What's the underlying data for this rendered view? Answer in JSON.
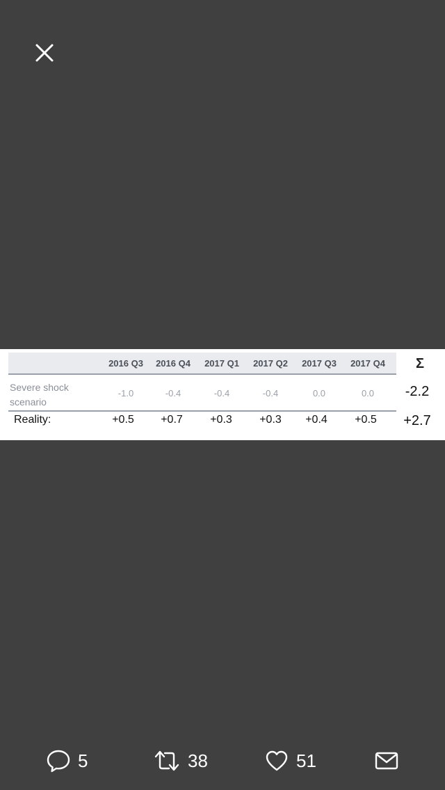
{
  "viewer": {
    "close_icon": "close-icon"
  },
  "table": {
    "columns": [
      "2016 Q3",
      "2016 Q4",
      "2017 Q1",
      "2017 Q2",
      "2017 Q3",
      "2017 Q4"
    ],
    "sum_header": "Σ",
    "rows": [
      {
        "label": "Severe shock scenario",
        "values": [
          "-1.0",
          "-0.4",
          "-0.4",
          "-0.4",
          "0.0",
          "0.0"
        ],
        "sum": "-2.2"
      },
      {
        "label": "Reality:",
        "values": [
          "+0.5",
          "+0.7",
          "+0.3",
          "+0.3",
          "+0.4",
          "+0.5"
        ],
        "sum": "+2.7"
      }
    ]
  },
  "actions": {
    "reply": {
      "icon": "reply-icon",
      "count": "5"
    },
    "retweet": {
      "icon": "retweet-icon",
      "count": "38"
    },
    "like": {
      "icon": "heart-icon",
      "count": "51"
    },
    "message": {
      "icon": "mail-icon"
    }
  }
}
